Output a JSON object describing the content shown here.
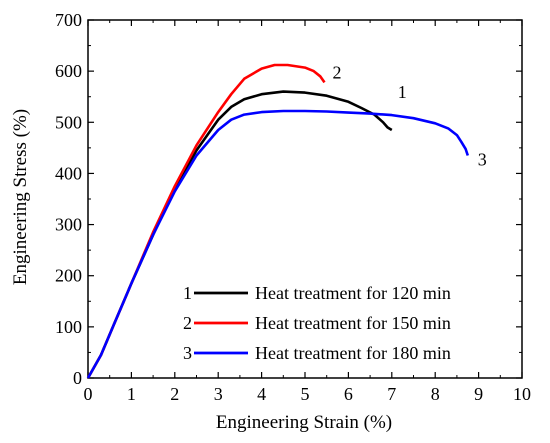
{
  "chart_data": {
    "type": "line",
    "xlabel": "Engineering Strain (%)",
    "ylabel": "Engineering Stress (%)",
    "xlim": [
      0,
      10
    ],
    "ylim": [
      0,
      700
    ],
    "xticks": [
      0,
      1,
      2,
      3,
      4,
      5,
      6,
      7,
      8,
      9,
      10
    ],
    "yticks": [
      0,
      100,
      200,
      300,
      400,
      500,
      600,
      700
    ],
    "grid": false,
    "legend_position": "bottom-right",
    "series": [
      {
        "name": "Heat treatment for 120 min",
        "label": "1",
        "legend_number": "1",
        "color": "#000000",
        "x": [
          0,
          0.3,
          0.6,
          1.0,
          1.5,
          2.0,
          2.5,
          3.0,
          3.3,
          3.6,
          4.0,
          4.5,
          5.0,
          5.5,
          6.0,
          6.3,
          6.6,
          6.8,
          6.9,
          7.0
        ],
        "y": [
          0,
          45,
          105,
          185,
          280,
          370,
          445,
          505,
          530,
          545,
          555,
          560,
          558,
          552,
          540,
          528,
          515,
          500,
          490,
          485
        ]
      },
      {
        "name": "Heat treatment for 150 min",
        "label": "2",
        "legend_number": "2",
        "color": "#ff0000",
        "x": [
          0,
          0.3,
          0.6,
          1.0,
          1.5,
          2.0,
          2.5,
          3.0,
          3.3,
          3.6,
          4.0,
          4.3,
          4.6,
          5.0,
          5.2,
          5.35,
          5.45
        ],
        "y": [
          0,
          45,
          105,
          185,
          285,
          375,
          455,
          520,
          555,
          585,
          605,
          612,
          612,
          607,
          600,
          590,
          578
        ]
      },
      {
        "name": "Heat treatment for 180 min",
        "label": "3",
        "legend_number": "3",
        "color": "#0000ff",
        "x": [
          0,
          0.3,
          0.6,
          1.0,
          1.5,
          2.0,
          2.5,
          3.0,
          3.3,
          3.6,
          4.0,
          4.5,
          5.0,
          5.5,
          6.0,
          6.5,
          7.0,
          7.5,
          8.0,
          8.3,
          8.5,
          8.6,
          8.7,
          8.75
        ],
        "y": [
          0,
          45,
          105,
          185,
          280,
          365,
          435,
          485,
          505,
          515,
          520,
          522,
          522,
          521,
          519,
          517,
          514,
          508,
          498,
          488,
          475,
          462,
          448,
          435
        ]
      }
    ]
  }
}
